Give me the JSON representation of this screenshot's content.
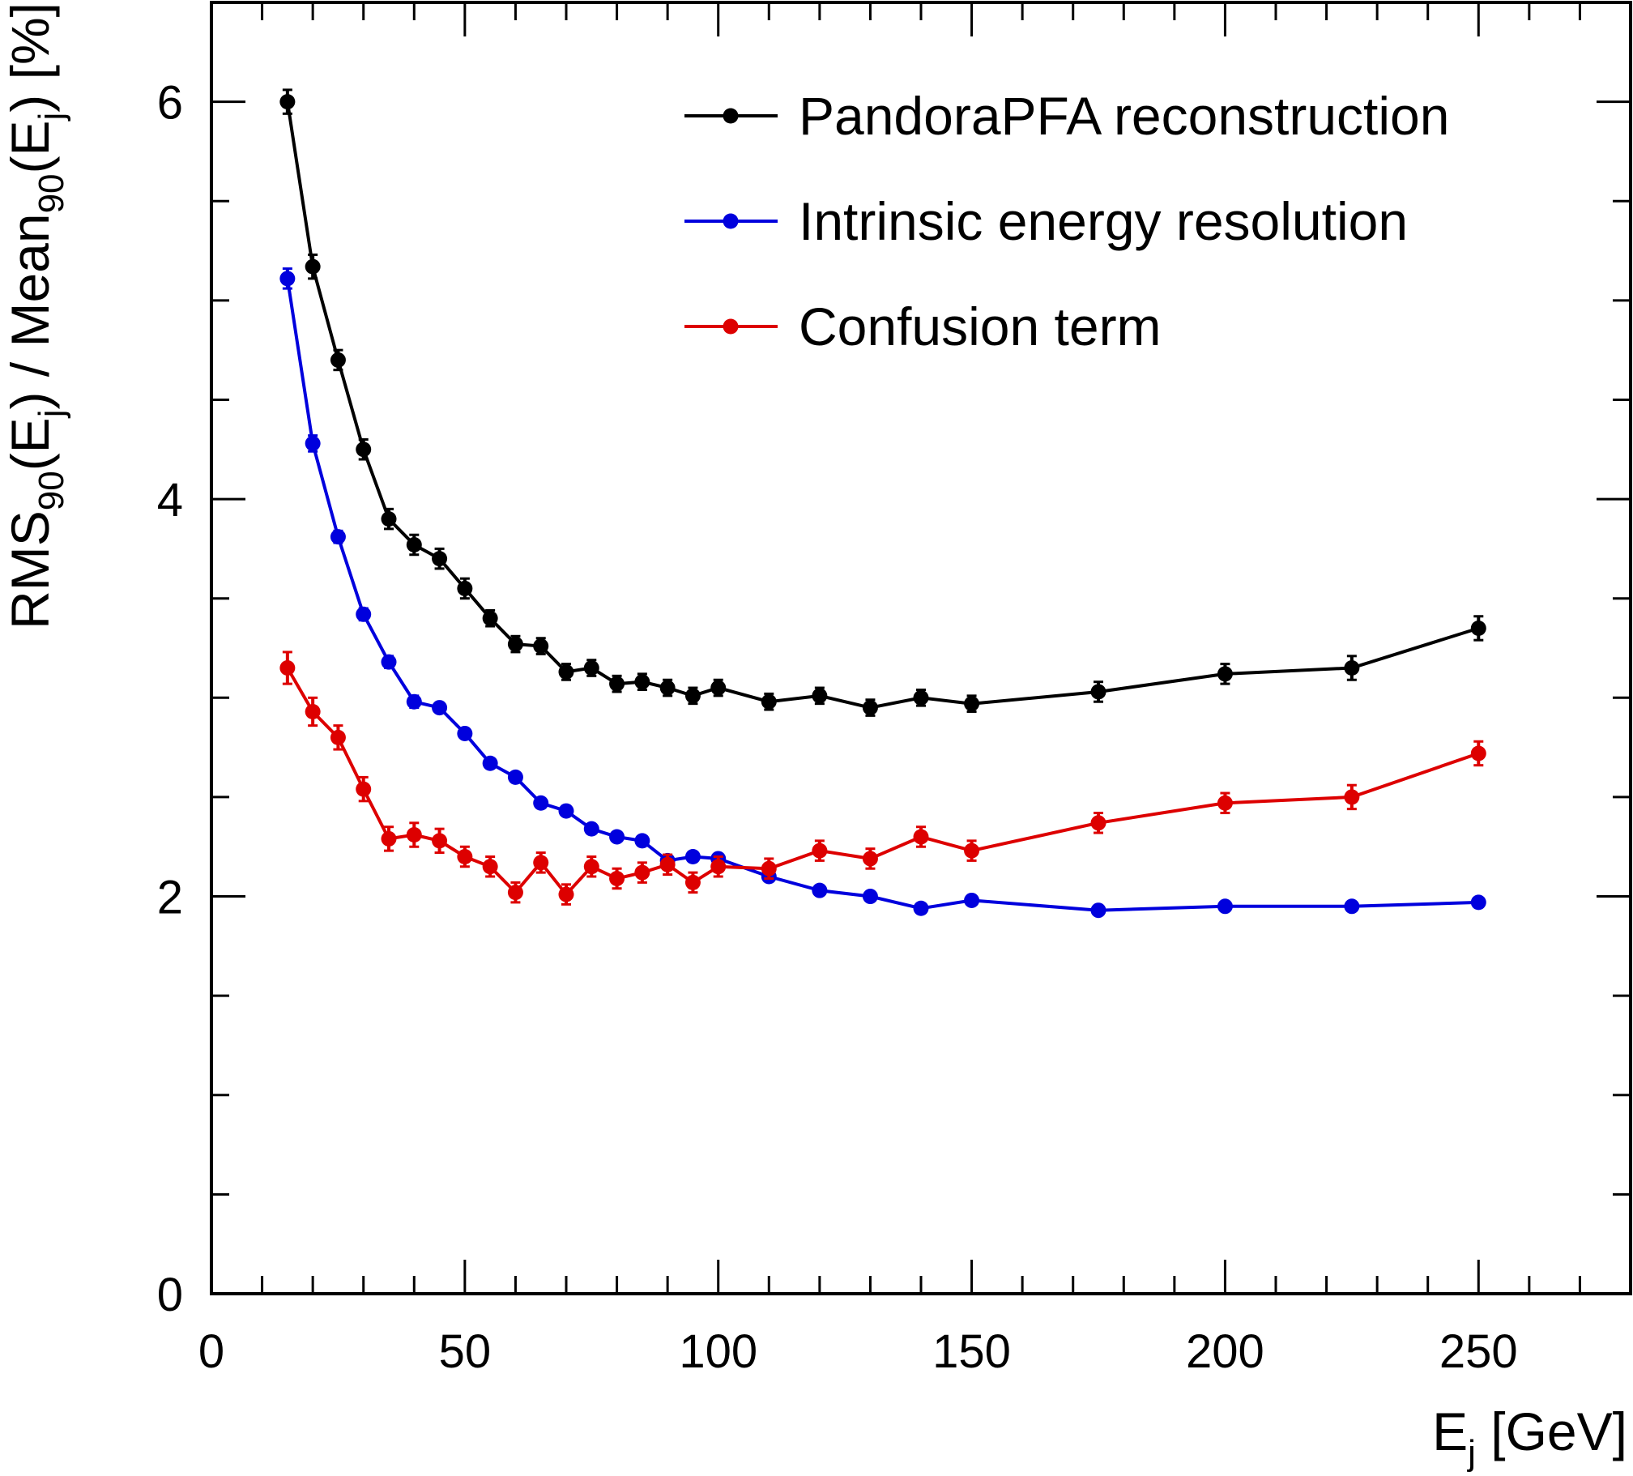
{
  "chart_data": {
    "type": "line",
    "title": "",
    "xlabel": {
      "main": "E",
      "sub": "j",
      "rest": " [GeV]"
    },
    "ylabel": {
      "parts": [
        {
          "t": "RMS",
          "sub": false
        },
        {
          "t": "90",
          "sub": true
        },
        {
          "t": "(E",
          "sub": false
        },
        {
          "t": "j",
          "sub": true
        },
        {
          "t": ") / Mean",
          "sub": false
        },
        {
          "t": "90",
          "sub": true
        },
        {
          "t": "(E",
          "sub": false
        },
        {
          "t": "j",
          "sub": true
        },
        {
          "t": ") [%]",
          "sub": false
        }
      ]
    },
    "xlim": [
      0,
      280
    ],
    "ylim": [
      0,
      6.5
    ],
    "x_ticks": [
      0,
      50,
      100,
      150,
      200,
      250
    ],
    "x_tick_labels": [
      "0",
      "50",
      "100",
      "150",
      "200",
      "250"
    ],
    "y_ticks": [
      0,
      2,
      4,
      6
    ],
    "y_tick_labels": [
      "0",
      "2",
      "4",
      "6"
    ],
    "grid": false,
    "legend_position": "top-right",
    "series": [
      {
        "name": "PandoraPFA reconstruction",
        "color": "#000000",
        "x": [
          15,
          20,
          25,
          30,
          35,
          40,
          45,
          50,
          55,
          60,
          65,
          70,
          75,
          80,
          85,
          90,
          95,
          100,
          110,
          120,
          130,
          140,
          150,
          175,
          200,
          225,
          250
        ],
        "y": [
          6.0,
          5.17,
          4.7,
          4.25,
          3.9,
          3.77,
          3.7,
          3.55,
          3.4,
          3.27,
          3.26,
          3.13,
          3.15,
          3.07,
          3.08,
          3.05,
          3.01,
          3.05,
          2.98,
          3.01,
          2.95,
          3.0,
          2.97,
          3.03,
          3.12,
          3.15,
          3.35
        ],
        "err": [
          0.06,
          0.06,
          0.05,
          0.05,
          0.05,
          0.05,
          0.05,
          0.05,
          0.04,
          0.04,
          0.04,
          0.04,
          0.04,
          0.04,
          0.04,
          0.04,
          0.04,
          0.04,
          0.04,
          0.04,
          0.04,
          0.04,
          0.04,
          0.05,
          0.05,
          0.06,
          0.06
        ]
      },
      {
        "name": "Intrinsic energy resolution",
        "color": "#0000dd",
        "x": [
          15,
          20,
          25,
          30,
          35,
          40,
          45,
          50,
          55,
          60,
          65,
          70,
          75,
          80,
          85,
          90,
          95,
          100,
          110,
          120,
          130,
          140,
          150,
          175,
          200,
          225,
          250
        ],
        "y": [
          5.11,
          4.28,
          3.81,
          3.42,
          3.18,
          2.98,
          2.95,
          2.82,
          2.67,
          2.6,
          2.47,
          2.43,
          2.34,
          2.3,
          2.28,
          2.18,
          2.2,
          2.19,
          2.1,
          2.03,
          2.0,
          1.94,
          1.98,
          1.93,
          1.95,
          1.95,
          1.97
        ],
        "err": [
          0.05,
          0.04,
          0.03,
          0.03,
          0.03,
          0.03,
          0.02,
          0.02,
          0.02,
          0.02,
          0.02,
          0.02,
          0.02,
          0.02,
          0.02,
          0.02,
          0.02,
          0.02,
          0.02,
          0.02,
          0.02,
          0.02,
          0.02,
          0.02,
          0.02,
          0.02,
          0.02
        ]
      },
      {
        "name": "Confusion term",
        "color": "#dd0000",
        "x": [
          15,
          20,
          25,
          30,
          35,
          40,
          45,
          50,
          55,
          60,
          65,
          70,
          75,
          80,
          85,
          90,
          95,
          100,
          110,
          120,
          130,
          140,
          150,
          175,
          200,
          225,
          250
        ],
        "y": [
          3.15,
          2.93,
          2.8,
          2.54,
          2.29,
          2.31,
          2.28,
          2.2,
          2.15,
          2.02,
          2.17,
          2.01,
          2.15,
          2.09,
          2.12,
          2.16,
          2.07,
          2.15,
          2.14,
          2.23,
          2.19,
          2.3,
          2.23,
          2.37,
          2.47,
          2.5,
          2.72
        ],
        "err": [
          0.08,
          0.07,
          0.06,
          0.06,
          0.06,
          0.06,
          0.06,
          0.05,
          0.05,
          0.05,
          0.05,
          0.05,
          0.05,
          0.05,
          0.05,
          0.05,
          0.05,
          0.05,
          0.05,
          0.05,
          0.05,
          0.05,
          0.05,
          0.05,
          0.05,
          0.06,
          0.06
        ]
      }
    ]
  }
}
